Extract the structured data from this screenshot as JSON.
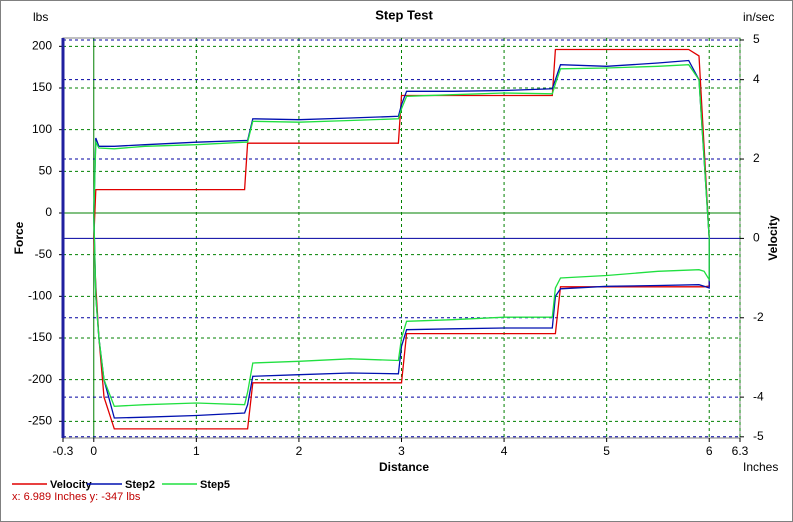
{
  "chart_data": {
    "type": "line",
    "title": "Step Test",
    "y_unit": "lbs",
    "y2_unit": "in/sec",
    "y_label": "Force",
    "y2_label": "Velocity",
    "x_label": "Distance",
    "x_unit": "Inches",
    "readout": "x: 6.989 Inches  y: -347 lbs",
    "xlim": [
      -0.3,
      6.3
    ],
    "xticks": [
      -0.3,
      0,
      1,
      2,
      3,
      4,
      5,
      6,
      6.3
    ],
    "ylim": [
      -270,
      210
    ],
    "yticks": [
      200,
      150,
      100,
      50,
      0,
      -50,
      -100,
      -150,
      -200,
      -250
    ],
    "y2lim": [
      -5.03,
      5.05
    ],
    "y2ticks": [
      5,
      4,
      2,
      0,
      -2,
      -4,
      -5
    ],
    "grid": true,
    "legend": "bottom",
    "x": [
      0,
      0.02,
      0.05,
      0.2,
      0.5,
      1.0,
      1.47,
      1.5,
      1.55,
      2.0,
      2.5,
      2.97,
      3.0,
      3.05,
      3.5,
      4.0,
      4.47,
      4.5,
      4.55,
      5.0,
      5.5,
      5.8,
      5.9,
      6.0,
      6.0,
      5.95,
      5.9,
      5.5,
      5.0,
      4.55,
      4.5,
      4.47,
      4.0,
      3.5,
      3.05,
      3.0,
      2.97,
      2.5,
      2.0,
      1.55,
      1.5,
      1.47,
      1.0,
      0.5,
      0.2,
      0.1,
      0.05,
      0.02,
      0
    ],
    "series": [
      {
        "name": "Velocity",
        "color": "#e00000",
        "axis": "y2",
        "values": [
          0,
          1.23,
          1.23,
          1.23,
          1.23,
          1.23,
          1.23,
          2.4,
          2.4,
          2.4,
          2.4,
          2.4,
          3.6,
          3.6,
          3.6,
          3.6,
          3.6,
          4.76,
          4.76,
          4.76,
          4.76,
          4.76,
          4.6,
          0,
          -1.2,
          -1.22,
          -1.22,
          -1.22,
          -1.22,
          -1.22,
          -2.4,
          -2.4,
          -2.4,
          -2.4,
          -2.4,
          -3.64,
          -3.64,
          -3.64,
          -3.64,
          -3.64,
          -4.8,
          -4.8,
          -4.8,
          -4.8,
          -4.8,
          -4.0,
          -2.5,
          -1.2,
          0
        ]
      },
      {
        "name": "Step2",
        "color": "#0010b0",
        "values": [
          0,
          90,
          80,
          80,
          82,
          85,
          87,
          87,
          113,
          112,
          114,
          116,
          130,
          146,
          146,
          147,
          149,
          160,
          178,
          176,
          180,
          183,
          160,
          -30,
          -90,
          -88,
          -86,
          -87,
          -88,
          -91,
          -100,
          -138,
          -138,
          -139,
          -140,
          -160,
          -193,
          -192,
          -194,
          -196,
          -230,
          -240,
          -243,
          -245,
          -246,
          -200,
          -150,
          -100,
          0
        ]
      },
      {
        "name": "Step5",
        "color": "#20e040",
        "values": [
          0,
          85,
          78,
          77,
          80,
          82,
          85,
          85,
          110,
          109,
          111,
          113,
          125,
          140,
          142,
          144,
          143,
          155,
          173,
          174,
          176,
          178,
          160,
          -30,
          -80,
          -70,
          -68,
          -70,
          -75,
          -78,
          -90,
          -125,
          -125,
          -128,
          -130,
          -150,
          -177,
          -175,
          -178,
          -180,
          -215,
          -230,
          -228,
          -230,
          -232,
          -200,
          -150,
          -100,
          0
        ]
      }
    ]
  }
}
